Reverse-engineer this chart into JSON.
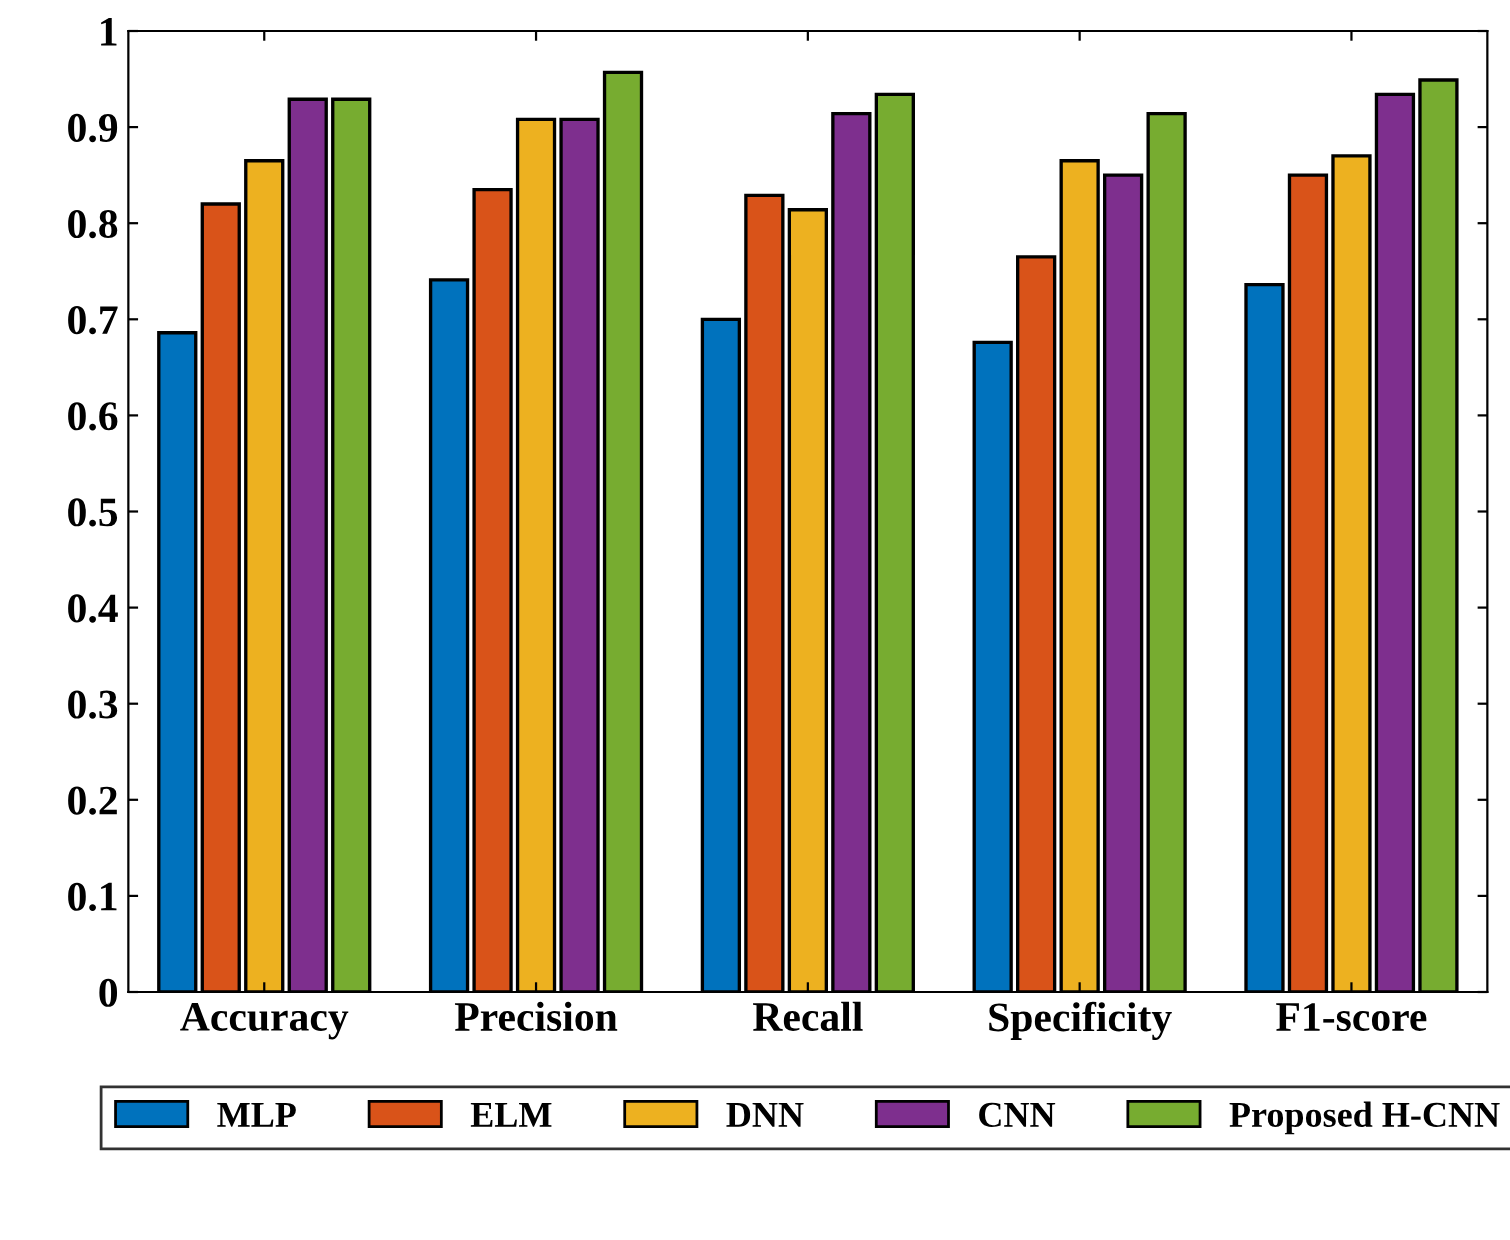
{
  "chart_data": {
    "type": "bar",
    "categories": [
      "Accuracy",
      "Precision",
      "Recall",
      "Specificity",
      "F1-score"
    ],
    "series": [
      {
        "name": "MLP",
        "color": "#0072bd",
        "values": [
          0.686,
          0.741,
          0.7,
          0.676,
          0.736
        ]
      },
      {
        "name": "ELM",
        "color": "#d95319",
        "values": [
          0.82,
          0.835,
          0.829,
          0.765,
          0.85
        ]
      },
      {
        "name": "DNN",
        "color": "#edb120",
        "values": [
          0.865,
          0.908,
          0.814,
          0.865,
          0.87
        ]
      },
      {
        "name": "CNN",
        "color": "#7e2f8e",
        "values": [
          0.929,
          0.908,
          0.914,
          0.85,
          0.934
        ]
      },
      {
        "name": "Proposed H-CNN",
        "color": "#77ac30",
        "values": [
          0.929,
          0.957,
          0.934,
          0.914,
          0.949
        ]
      }
    ],
    "ylim": [
      0,
      1
    ],
    "yticks": [
      0,
      0.1,
      0.2,
      0.3,
      0.4,
      0.5,
      0.6,
      0.7,
      0.8,
      0.9,
      1
    ],
    "grid": false,
    "legend": "bottom"
  }
}
